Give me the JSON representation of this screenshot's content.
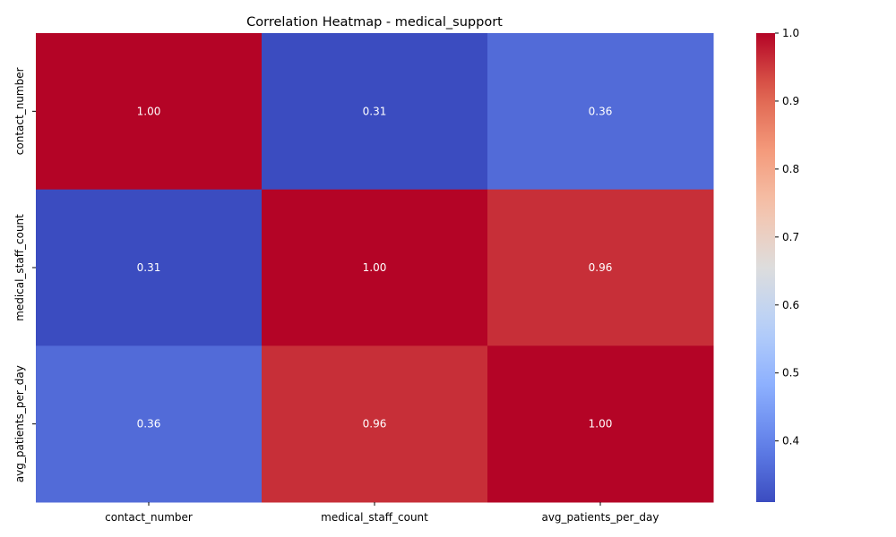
{
  "chart_data": {
    "type": "heatmap",
    "title": "Correlation Heatmap - medical_support",
    "x_categories": [
      "contact_number",
      "medical_staff_count",
      "avg_patients_per_day"
    ],
    "y_categories": [
      "contact_number",
      "medical_staff_count",
      "avg_patients_per_day"
    ],
    "values": [
      [
        1.0,
        0.31,
        0.36
      ],
      [
        0.31,
        1.0,
        0.96
      ],
      [
        0.36,
        0.96,
        1.0
      ]
    ],
    "cell_labels": [
      [
        "1.00",
        "0.31",
        "0.36"
      ],
      [
        "0.31",
        "1.00",
        "0.96"
      ],
      [
        "0.36",
        "0.96",
        "1.00"
      ]
    ],
    "colormap": "coolwarm",
    "colorbar": {
      "range": [
        0.31,
        1.0
      ],
      "ticks": [
        0.4,
        0.5,
        0.6,
        0.7,
        0.8,
        0.9,
        1.0
      ],
      "tick_labels": [
        "0.4",
        "0.5",
        "0.6",
        "0.7",
        "0.8",
        "0.9",
        "1.0"
      ]
    },
    "xlabel": "",
    "ylabel": ""
  }
}
